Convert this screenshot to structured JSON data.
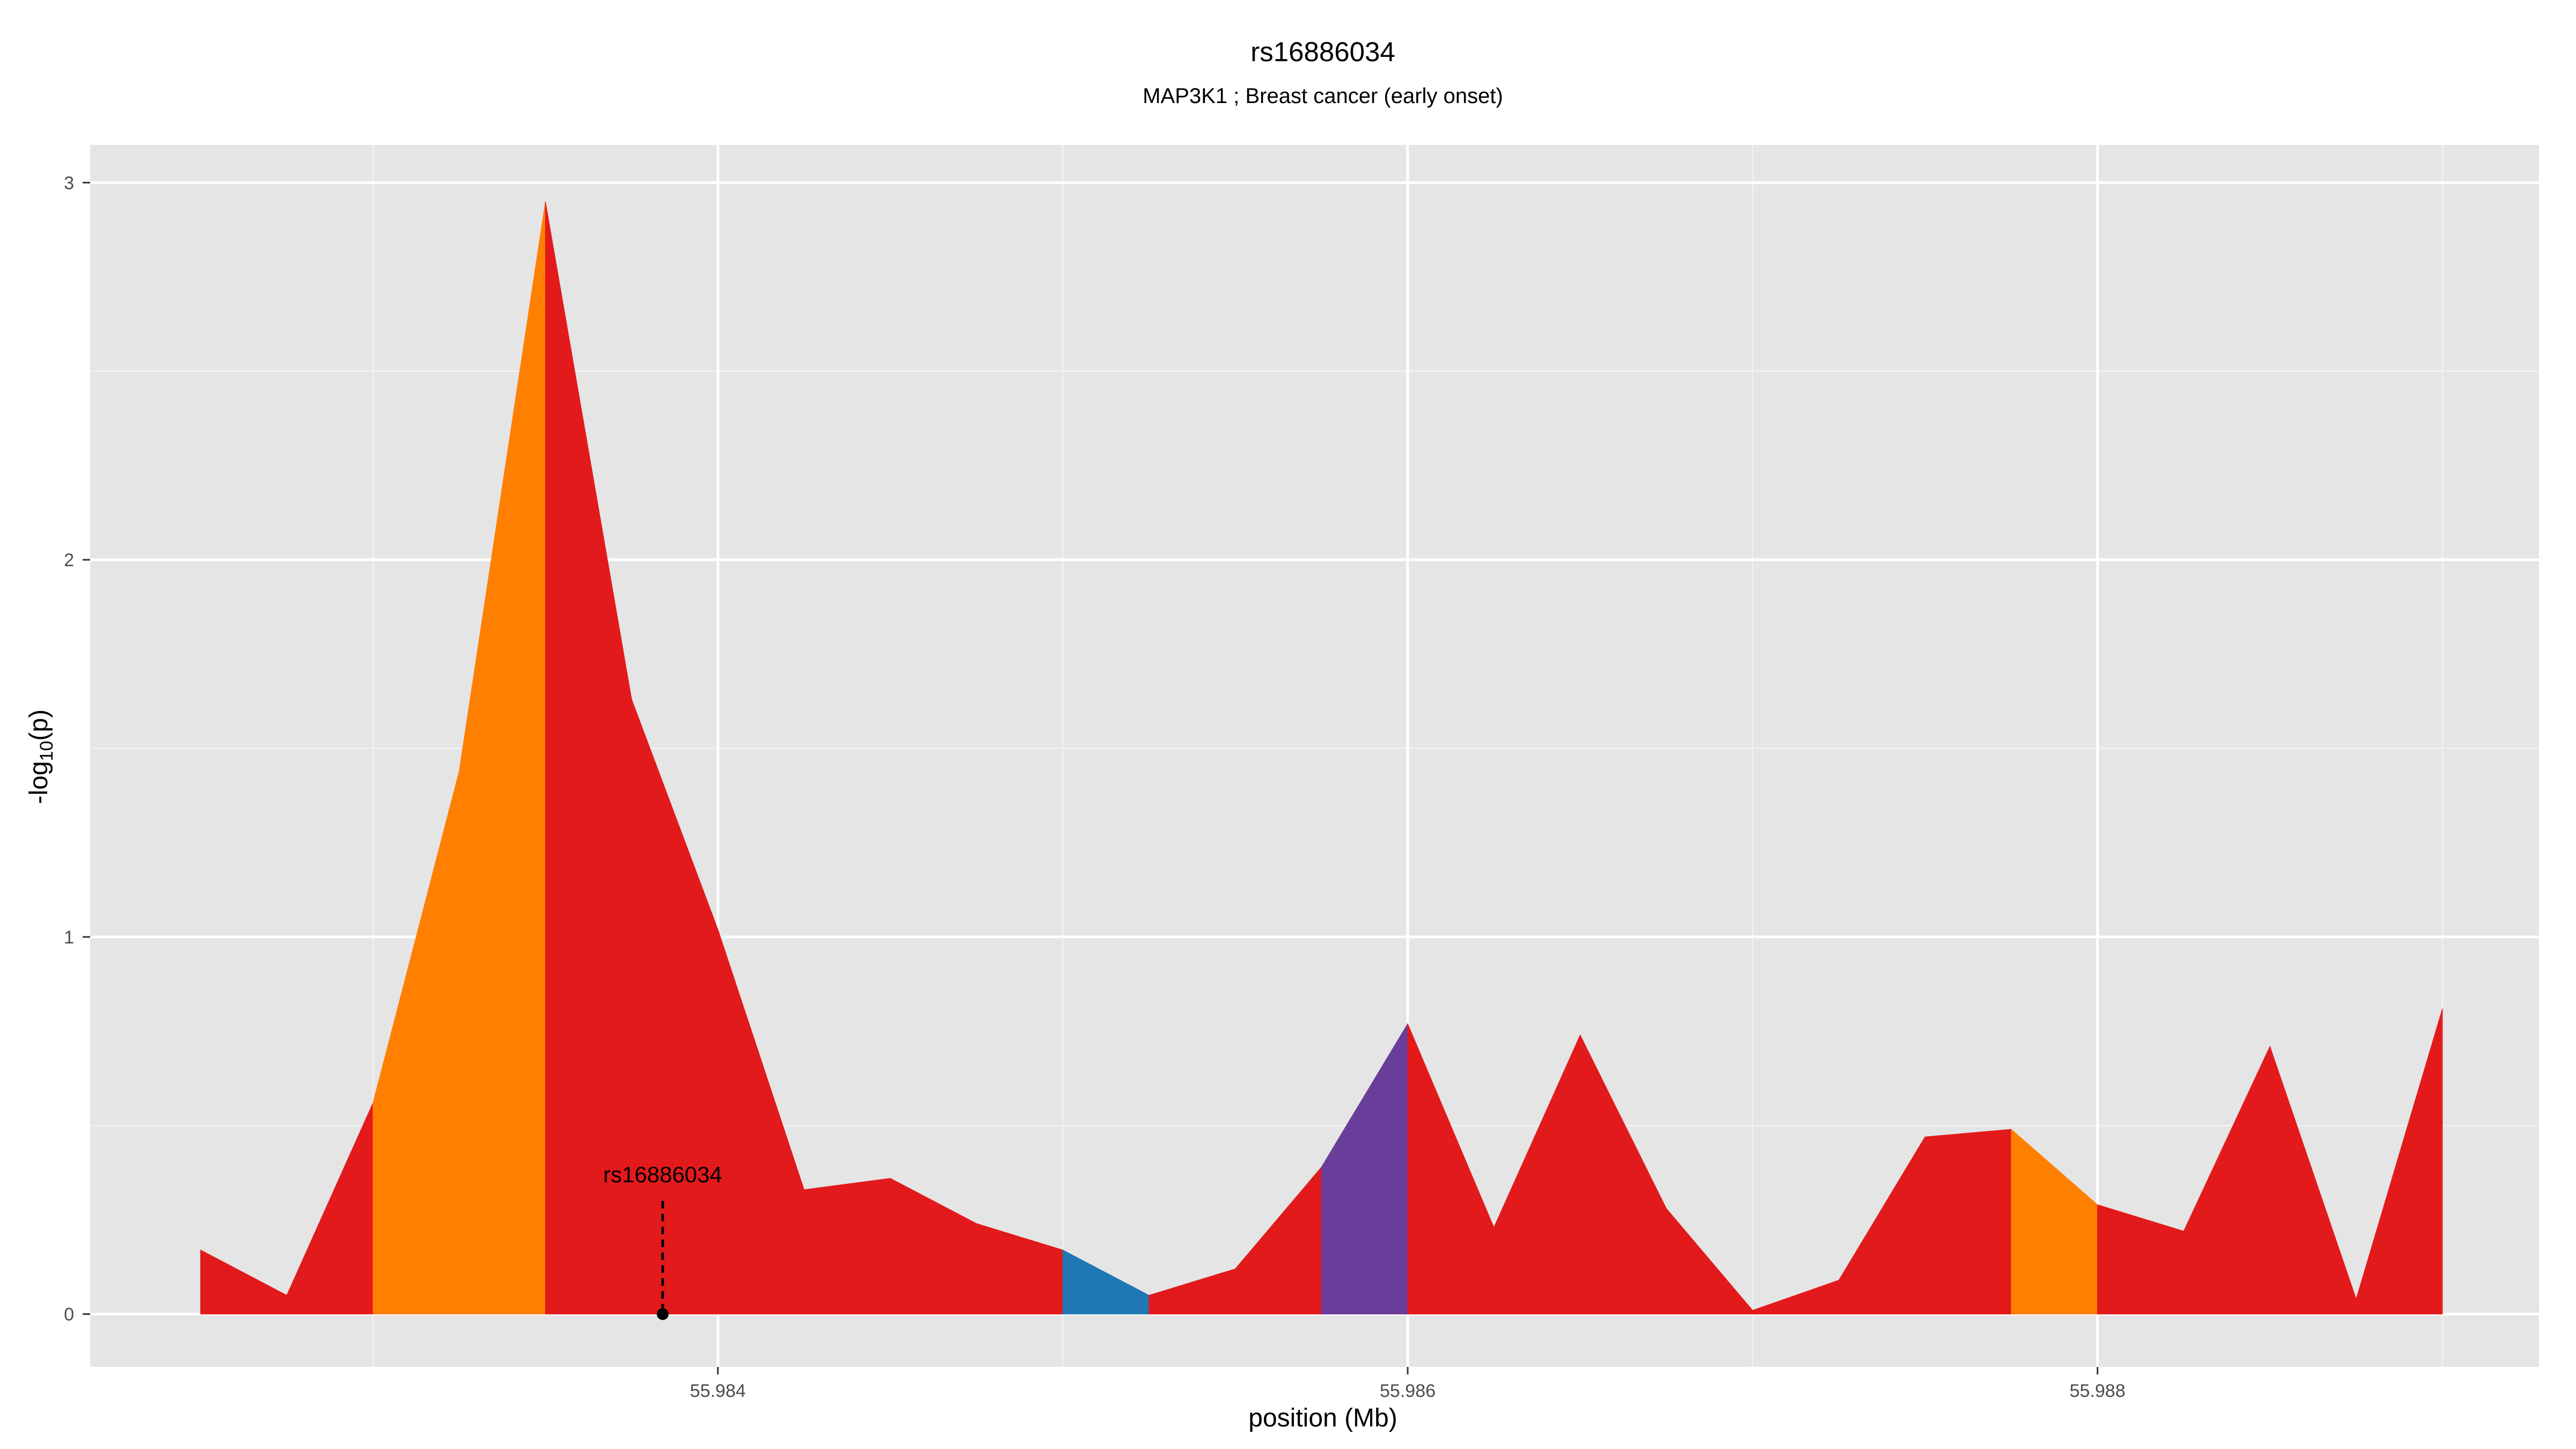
{
  "chart_data": {
    "type": "area",
    "title": "rs16886034",
    "subtitle": "MAP3K1 ; Breast cancer (early onset)",
    "xlabel": "position (Mb)",
    "ylabel": "-log10(p)",
    "ylabel_parts": {
      "prefix": "-log",
      "sub": "10",
      "suffix": "(p)"
    },
    "xlim": [
      55.98218,
      55.98928
    ],
    "ylim": [
      -0.14,
      3.1
    ],
    "x_major_ticks": [
      55.984,
      55.986,
      55.988
    ],
    "x_tick_labels": [
      "55.984",
      "55.986",
      "55.988"
    ],
    "x_minor_ticks": [
      55.983,
      55.985,
      55.987,
      55.989
    ],
    "y_major_ticks": [
      0,
      1,
      2,
      3
    ],
    "y_tick_labels": [
      "0",
      "1",
      "2",
      "3"
    ],
    "y_minor_ticks": [
      0.5,
      1.5,
      2.5
    ],
    "grid": true,
    "background": "#e5e5e5",
    "grid_color": "#ffffff",
    "x": [
      55.9825,
      55.98275,
      55.983,
      55.98325,
      55.9835,
      55.98375,
      55.984,
      55.98425,
      55.9845,
      55.98475,
      55.985,
      55.98525,
      55.9855,
      55.98575,
      55.986,
      55.98625,
      55.9865,
      55.98675,
      55.987,
      55.98725,
      55.9875,
      55.98775,
      55.988,
      55.98825,
      55.9885,
      55.98875,
      55.989
    ],
    "y": [
      0.17,
      0.05,
      0.56,
      1.44,
      2.95,
      1.63,
      1.02,
      0.33,
      0.36,
      0.24,
      0.17,
      0.05,
      0.12,
      0.39,
      0.77,
      0.23,
      0.74,
      0.28,
      0.01,
      0.09,
      0.47,
      0.49,
      0.29,
      0.22,
      0.71,
      0.04,
      0.81
    ],
    "bands": [
      {
        "start": 55.9825,
        "end": 55.983,
        "color": "#e31a1c"
      },
      {
        "start": 55.983,
        "end": 55.9835,
        "color": "#ff7f00"
      },
      {
        "start": 55.9835,
        "end": 55.985,
        "color": "#e31a1c"
      },
      {
        "start": 55.985,
        "end": 55.98525,
        "color": "#1f78b4"
      },
      {
        "start": 55.98525,
        "end": 55.98575,
        "color": "#e31a1c"
      },
      {
        "start": 55.98575,
        "end": 55.986,
        "color": "#6a3d9a"
      },
      {
        "start": 55.986,
        "end": 55.98775,
        "color": "#e31a1c"
      },
      {
        "start": 55.98775,
        "end": 55.988,
        "color": "#ff7f00"
      },
      {
        "start": 55.988,
        "end": 55.989,
        "color": "#e31a1c"
      }
    ],
    "annotation": {
      "label": "rs16886034",
      "x": 55.98384,
      "y": 0,
      "line_top_y": 0.3
    }
  }
}
